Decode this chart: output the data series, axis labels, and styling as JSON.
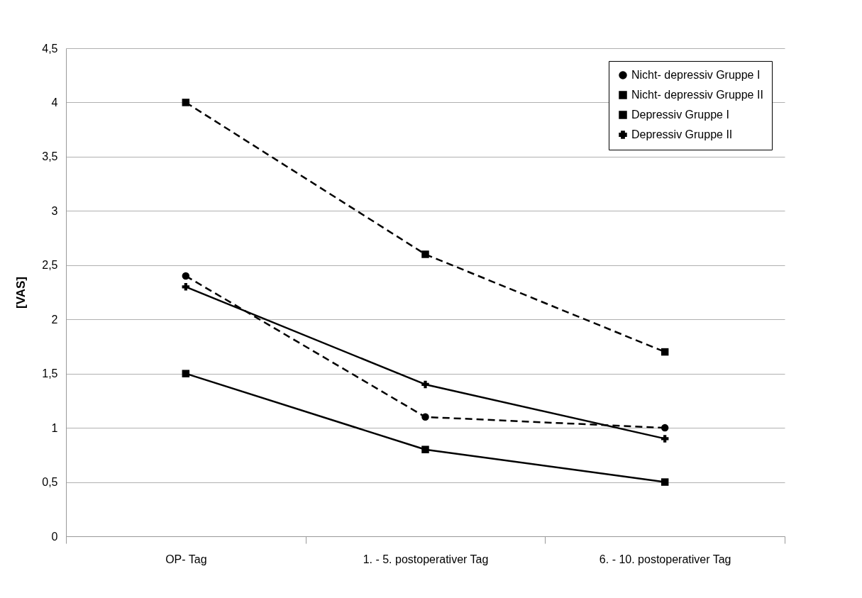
{
  "chart_data": {
    "type": "line",
    "ylabel": "[VAS]",
    "categories": [
      "OP- Tag",
      "1. - 5. postoperativer Tag",
      "6. - 10. postoperativer Tag"
    ],
    "series": [
      {
        "name": "Nicht- depressiv Gruppe I",
        "color": "#000000",
        "marker": "circle",
        "line_style": "dashed",
        "values": [
          2.4,
          1.1,
          1.0
        ]
      },
      {
        "name": "Nicht- depressiv Gruppe II",
        "color": "#000000",
        "marker": "square",
        "line_style": "solid",
        "values": [
          1.5,
          0.8,
          0.5
        ]
      },
      {
        "name": "Depressiv Gruppe I",
        "color": "#000000",
        "marker": "square",
        "line_style": "dashed",
        "values": [
          4.0,
          2.6,
          1.7
        ]
      },
      {
        "name": "Depressiv Gruppe II",
        "color": "#000000",
        "marker": "cross",
        "line_style": "solid",
        "values": [
          2.3,
          1.4,
          0.9
        ]
      }
    ],
    "ylim": [
      0,
      4.5
    ],
    "yticks": [
      0,
      {
        "value": 0.5,
        "label": "0,5"
      },
      1,
      {
        "value": 1.5,
        "label": "1,5"
      },
      2,
      {
        "value": 2.5,
        "label": "2,5"
      },
      3,
      {
        "value": 3.5,
        "label": "3,5"
      },
      4,
      {
        "value": 4.5,
        "label": "4,5"
      }
    ],
    "grid": "y",
    "legend": "top right"
  }
}
